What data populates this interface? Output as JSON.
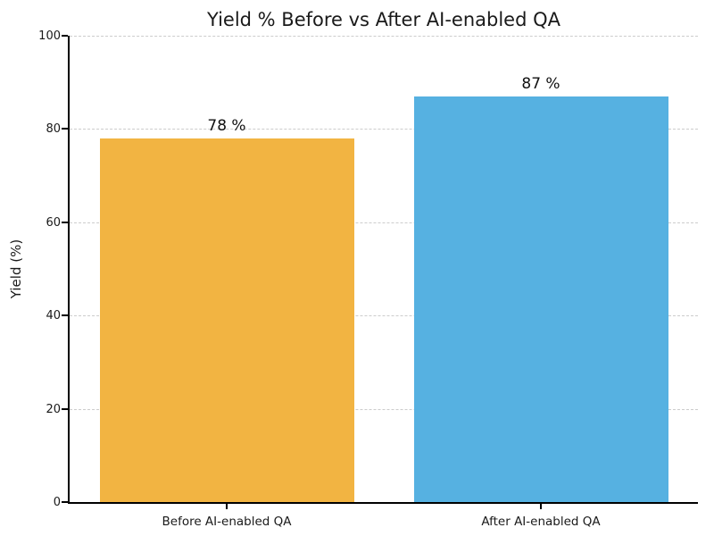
{
  "chart_data": {
    "type": "bar",
    "title": "Yield % Before vs After AI-enabled QA",
    "xlabel": "",
    "ylabel": "Yield (%)",
    "categories": [
      "Before AI-enabled QA",
      "After AI-enabled QA"
    ],
    "values": [
      78,
      87
    ],
    "value_labels": [
      "78 %",
      "87 %"
    ],
    "bar_colors": [
      "#F2B442",
      "#56B1E1"
    ],
    "ylim": [
      0,
      100
    ],
    "yticks": [
      0,
      20,
      40,
      60,
      80,
      100
    ],
    "grid": "horizontal-dashed",
    "legend_position": "none"
  },
  "colors": {
    "background": "#ffffff",
    "grid": "#cccccc",
    "axis": "#000000",
    "text": "#1a1a1a"
  }
}
